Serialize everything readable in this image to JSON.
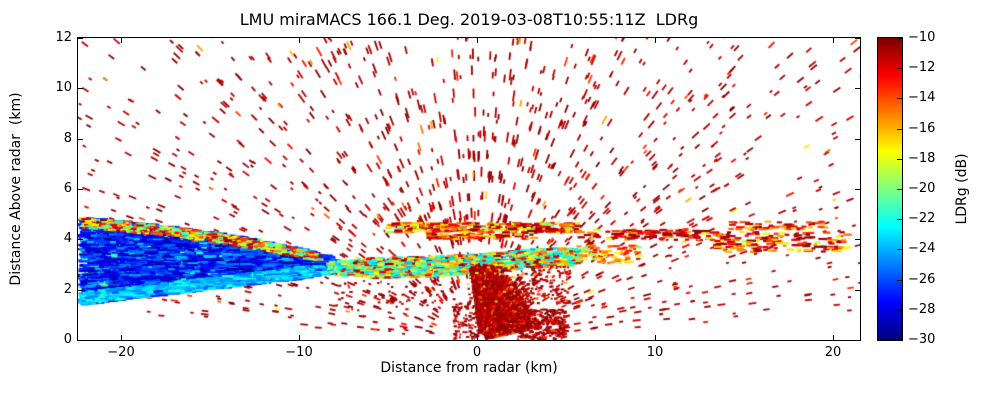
{
  "chart_data": {
    "type": "heatmap",
    "title": "LMU miraMACS 166.1 Deg. 2019-03-08T10:55:11Z  LDRg",
    "xlabel": "Distance from radar (km)",
    "ylabel": "Distance Above radar  (km)",
    "xlim": [
      -22.4,
      21.5
    ],
    "ylim": [
      0,
      12
    ],
    "xticks": [
      -20,
      -10,
      0,
      10,
      20
    ],
    "yticks": [
      0,
      2,
      4,
      6,
      8,
      10,
      12
    ],
    "grid": false,
    "colorbar": {
      "label": "LDRg (dB)",
      "colormap": "jet",
      "vmin": -30,
      "vmax": -10,
      "ticks": [
        -10,
        -12,
        -14,
        -16,
        -18,
        -20,
        -22,
        -24,
        -26,
        -28,
        -30
      ]
    },
    "seed": 42,
    "features": [
      {
        "name": "noise-speckle-fan",
        "type": "polar",
        "origin": [
          0,
          0
        ],
        "range": [
          2.2,
          26
        ],
        "gate": 0.8,
        "elev": [
          3,
          177
        ],
        "count": 2200,
        "dash": [
          0.15,
          0.45
        ],
        "lw": 1.8,
        "values": [
          [
            0.87,
            -11.5,
            -10
          ],
          [
            0.09,
            -14,
            -11.5
          ],
          [
            0.04,
            -18,
            -14
          ]
        ]
      },
      {
        "name": "cloud-wedge-core",
        "type": "poly",
        "count": 4200,
        "dash": [
          0.25,
          0.85
        ],
        "h": 2.2,
        "poly": [
          [
            -22.4,
            4.9
          ],
          [
            -20,
            4.75
          ],
          [
            -17,
            4.5
          ],
          [
            -14,
            4.2
          ],
          [
            -11,
            3.8
          ],
          [
            -9,
            3.45
          ],
          [
            -7.5,
            3.05
          ],
          [
            -7.5,
            2.8
          ],
          [
            -10,
            2.5
          ],
          [
            -13,
            2.25
          ],
          [
            -16,
            2.0
          ],
          [
            -19,
            1.75
          ],
          [
            -22.4,
            1.45
          ]
        ],
        "values": [
          [
            0.5,
            -29.5,
            -27
          ],
          [
            0.3,
            -27,
            -25
          ],
          [
            0.15,
            -25,
            -23
          ],
          [
            0.05,
            -22,
            -20
          ]
        ]
      },
      {
        "name": "cloud-wedge-bottom-cyan-strip",
        "type": "poly",
        "count": 1000,
        "dash": [
          0.25,
          0.7
        ],
        "h": 2.2,
        "poly": [
          [
            -22.4,
            1.45
          ],
          [
            -19,
            1.75
          ],
          [
            -16,
            2.0
          ],
          [
            -13,
            2.25
          ],
          [
            -10,
            2.5
          ],
          [
            -7.6,
            2.8
          ],
          [
            -7.6,
            3.0
          ],
          [
            -10,
            2.95
          ],
          [
            -13,
            2.68
          ],
          [
            -16,
            2.45
          ],
          [
            -19,
            2.2
          ],
          [
            -22.4,
            1.95
          ]
        ],
        "values": [
          [
            0.5,
            -25,
            -23
          ],
          [
            0.35,
            -23.5,
            -21.5
          ],
          [
            0.15,
            -27,
            -25
          ]
        ]
      },
      {
        "name": "cloud-wedge-top-mixed-strip",
        "type": "poly",
        "count": 700,
        "dash": [
          0.15,
          0.45
        ],
        "h": 2,
        "poly": [
          [
            -22.4,
            4.9
          ],
          [
            -20,
            4.75
          ],
          [
            -17,
            4.5
          ],
          [
            -14,
            4.2
          ],
          [
            -11,
            3.8
          ],
          [
            -9,
            3.45
          ],
          [
            -9,
            3.15
          ],
          [
            -11,
            3.45
          ],
          [
            -14,
            3.8
          ],
          [
            -17,
            4.12
          ],
          [
            -20,
            4.35
          ],
          [
            -22.4,
            4.5
          ]
        ],
        "values": [
          [
            0.3,
            -22,
            -19
          ],
          [
            0.3,
            -19,
            -16
          ],
          [
            0.25,
            -15,
            -12
          ],
          [
            0.15,
            -12,
            -10
          ]
        ]
      },
      {
        "name": "melting-layer-band",
        "type": "poly",
        "count": 1500,
        "dash": [
          0.15,
          0.5
        ],
        "h": 2.2,
        "poly": [
          [
            -8.5,
            3.15
          ],
          [
            -6,
            3.3
          ],
          [
            -3,
            3.35
          ],
          [
            0,
            3.45
          ],
          [
            2,
            3.6
          ],
          [
            4,
            3.7
          ],
          [
            5.6,
            3.65
          ],
          [
            5.6,
            3.0
          ],
          [
            3,
            2.9
          ],
          [
            0,
            2.7
          ],
          [
            -3,
            2.55
          ],
          [
            -6,
            2.5
          ],
          [
            -8.5,
            2.65
          ]
        ],
        "values": [
          [
            0.25,
            -24,
            -22
          ],
          [
            0.28,
            -22,
            -19
          ],
          [
            0.27,
            -18,
            -15
          ],
          [
            0.2,
            -13,
            -10
          ]
        ]
      },
      {
        "name": "band-tail-right",
        "type": "rect",
        "x": [
          5.5,
          9
        ],
        "y": [
          3.1,
          3.8
        ],
        "count": 90,
        "dash": [
          0.15,
          0.4
        ],
        "h": 2.2,
        "values": [
          [
            0.4,
            -17,
            -14
          ],
          [
            0.3,
            -14,
            -12
          ],
          [
            0.3,
            -20,
            -17
          ]
        ]
      },
      {
        "name": "upper-streak-center",
        "type": "rect",
        "x": [
          -5.2,
          5.6
        ],
        "y": [
          4.3,
          4.7
        ],
        "count": 260,
        "dash": [
          0.2,
          0.6
        ],
        "h": 2.2,
        "values": [
          [
            0.5,
            -13,
            -10
          ],
          [
            0.3,
            -17,
            -14
          ],
          [
            0.2,
            -20,
            -17
          ]
        ]
      },
      {
        "name": "upper-streak-center-2",
        "type": "rect",
        "x": [
          -3,
          3
        ],
        "y": [
          4.05,
          4.25
        ],
        "count": 70,
        "dash": [
          0.2,
          0.5
        ],
        "h": 2,
        "values": [
          [
            0.6,
            -13,
            -10
          ],
          [
            0.4,
            -17,
            -14
          ]
        ]
      },
      {
        "name": "upper-streak-right-1",
        "type": "rect",
        "x": [
          5.5,
          13
        ],
        "y": [
          4.0,
          4.45
        ],
        "count": 110,
        "dash": [
          0.2,
          0.5
        ],
        "h": 2.2,
        "values": [
          [
            0.65,
            -12.5,
            -10
          ],
          [
            0.25,
            -16,
            -13
          ],
          [
            0.1,
            -19,
            -16
          ]
        ]
      },
      {
        "name": "upper-streak-right-2",
        "type": "rect",
        "x": [
          13,
          20.6
        ],
        "y": [
          3.55,
          4.35
        ],
        "count": 150,
        "dash": [
          0.2,
          0.55
        ],
        "h": 2.2,
        "values": [
          [
            0.55,
            -12.5,
            -10
          ],
          [
            0.3,
            -16,
            -13
          ],
          [
            0.15,
            -19,
            -16
          ]
        ]
      },
      {
        "name": "upper-streak-right-3",
        "type": "rect",
        "x": [
          14,
          19.5
        ],
        "y": [
          4.4,
          4.75
        ],
        "count": 55,
        "dash": [
          0.2,
          0.5
        ],
        "h": 2,
        "values": [
          [
            0.5,
            -13,
            -10
          ],
          [
            0.5,
            -17,
            -13
          ]
        ]
      },
      {
        "name": "ground-clutter-fan",
        "type": "polar",
        "origin": [
          0.2,
          0
        ],
        "range": [
          0.25,
          2.9
        ],
        "gate": 0,
        "elev": [
          8,
          102
        ],
        "count": 3000,
        "dash": [
          0.06,
          0.2
        ],
        "lw": 2,
        "values": [
          [
            0.8,
            -11.3,
            -10
          ],
          [
            0.15,
            -13.5,
            -11.3
          ],
          [
            0.05,
            -16,
            -13.5
          ]
        ]
      },
      {
        "name": "ground-clutter-skirt",
        "type": "rect",
        "x": [
          2.2,
          4.9
        ],
        "y": [
          0.05,
          1.25
        ],
        "count": 300,
        "dash": [
          0.08,
          0.25
        ],
        "h": 2,
        "values": [
          [
            0.85,
            -11.5,
            -10
          ],
          [
            0.15,
            -14,
            -11.5
          ]
        ]
      },
      {
        "name": "ground-clutter-left",
        "type": "rect",
        "x": [
          -1.4,
          0
        ],
        "y": [
          0.08,
          1.5
        ],
        "count": 110,
        "dash": [
          0.08,
          0.2
        ],
        "h": 2,
        "values": [
          [
            0.85,
            -11.5,
            -10
          ],
          [
            0.15,
            -14,
            -11.5
          ]
        ]
      },
      {
        "name": "clutter-above",
        "type": "rect",
        "x": [
          -0.6,
          5.2
        ],
        "y": [
          1.5,
          2.95
        ],
        "count": 240,
        "dash": [
          0.07,
          0.22
        ],
        "h": 2,
        "values": [
          [
            0.72,
            -11.5,
            -10
          ],
          [
            0.16,
            -14,
            -11.5
          ],
          [
            0.12,
            -18,
            -14
          ]
        ]
      },
      {
        "name": "dots-below-band",
        "type": "rect",
        "x": [
          -8,
          -1.2
        ],
        "y": [
          1.2,
          2.4
        ],
        "count": 60,
        "dash": [
          0.08,
          0.2
        ],
        "h": 2,
        "values": [
          [
            0.9,
            -11.5,
            -10
          ],
          [
            0.1,
            -14,
            -12
          ]
        ]
      }
    ]
  }
}
